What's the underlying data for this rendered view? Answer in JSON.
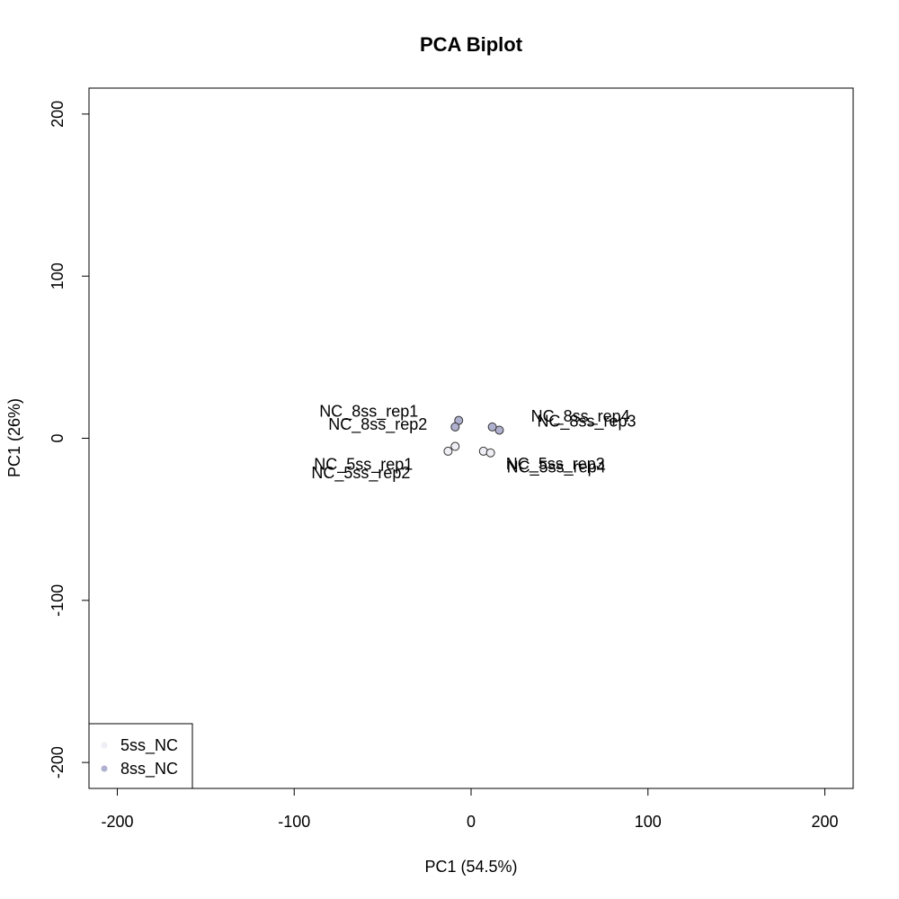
{
  "chart_data": {
    "type": "scatter",
    "title": "PCA Biplot",
    "xlabel": "PC1 (54.5%)",
    "ylabel": "PC1 (26%)",
    "xlim": [
      -216,
      216
    ],
    "ylim": [
      -216,
      216
    ],
    "xticks": [
      -200,
      -100,
      0,
      100,
      200
    ],
    "yticks": [
      -200,
      -100,
      0,
      100,
      200
    ],
    "grid": false,
    "legend_position": "bottom-left",
    "series": [
      {
        "name": "5ss_NC",
        "color": "#eeeef4",
        "points": [
          {
            "label": "NC_5ss_rep1",
            "x": -9,
            "y": -5
          },
          {
            "label": "NC_5ss_rep2",
            "x": -13,
            "y": -8
          },
          {
            "label": "NC_5ss_rep3",
            "x": 7,
            "y": -8
          },
          {
            "label": "NC_5ss_rep4",
            "x": 11,
            "y": -9
          }
        ]
      },
      {
        "name": "8ss_NC",
        "color": "#b0b0d0",
        "points": [
          {
            "label": "NC_8ss_rep1",
            "x": -7,
            "y": 11
          },
          {
            "label": "NC_8ss_rep2",
            "x": -9,
            "y": 7
          },
          {
            "label": "NC_8ss_rep3",
            "x": 16,
            "y": 5
          },
          {
            "label": "NC_8ss_rep4",
            "x": 12,
            "y": 7
          }
        ]
      }
    ]
  }
}
